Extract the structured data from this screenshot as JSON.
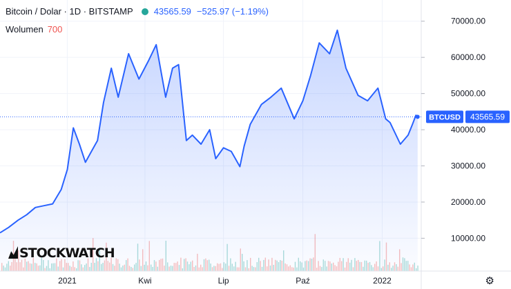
{
  "header": {
    "symbol": "Bitcoin / Dolar · 1D · BITSTAMP",
    "last": "43565.59",
    "change": "−525.97 (−1.19%)",
    "status_color": "#26a69a"
  },
  "volume": {
    "label": "Wolumen",
    "value": "700"
  },
  "logo": {
    "text": "STOCKWATCH"
  },
  "price_tag": {
    "symbol": "BTCUSD",
    "value": "43565.59"
  },
  "settings_icon": "gear-icon",
  "colors": {
    "line": "#2962ff",
    "fill": "#2962ff",
    "vol_up": "#26a69a",
    "vol_down": "#ef5350"
  },
  "chart_data": {
    "type": "area",
    "title": "Bitcoin / Dolar · 1D · BITSTAMP",
    "xlabel": "",
    "ylabel": "",
    "ylim": [
      5500,
      75000
    ],
    "y_ticks": [
      "70000.00",
      "60000.00",
      "50000.00",
      "40000.00",
      "30000.00",
      "20000.00",
      "10000.00"
    ],
    "y_tick_values": [
      70000,
      60000,
      50000,
      40000,
      30000,
      20000,
      10000
    ],
    "x_ticks": [
      "2021",
      "Kwi",
      "Lip",
      "Paź",
      "2022"
    ],
    "x_tick_dates": [
      "2021-01-01",
      "2021-04-01",
      "2021-07-01",
      "2021-10-01",
      "2022-01-01"
    ],
    "grid": true,
    "series": [
      {
        "name": "BTCUSD",
        "x": [
          "2020-10-15",
          "2020-10-25",
          "2020-11-05",
          "2020-11-15",
          "2020-11-25",
          "2020-12-05",
          "2020-12-15",
          "2020-12-25",
          "2021-01-01",
          "2021-01-08",
          "2021-01-15",
          "2021-01-22",
          "2021-01-29",
          "2021-02-05",
          "2021-02-12",
          "2021-02-21",
          "2021-03-01",
          "2021-03-13",
          "2021-03-25",
          "2021-04-05",
          "2021-04-14",
          "2021-04-25",
          "2021-05-03",
          "2021-05-10",
          "2021-05-19",
          "2021-05-26",
          "2021-06-05",
          "2021-06-15",
          "2021-06-22",
          "2021-07-01",
          "2021-07-10",
          "2021-07-20",
          "2021-07-25",
          "2021-08-01",
          "2021-08-14",
          "2021-08-25",
          "2021-09-06",
          "2021-09-21",
          "2021-10-01",
          "2021-10-10",
          "2021-10-20",
          "2021-11-01",
          "2021-11-10",
          "2021-11-20",
          "2021-12-04",
          "2021-12-15",
          "2021-12-27",
          "2022-01-05",
          "2022-01-10",
          "2022-01-22",
          "2022-01-31",
          "2022-02-05",
          "2022-02-09",
          "2022-02-11"
        ],
        "values": [
          11500,
          13000,
          15000,
          16500,
          18500,
          19000,
          19500,
          23500,
          29000,
          40500,
          36000,
          31000,
          34000,
          37000,
          47500,
          57000,
          49000,
          61000,
          54000,
          59000,
          63500,
          49000,
          57000,
          58000,
          37000,
          38500,
          36000,
          40000,
          32000,
          35000,
          34000,
          29800,
          35500,
          41500,
          47000,
          49000,
          51500,
          43000,
          48000,
          55000,
          64000,
          61000,
          67500,
          57000,
          49500,
          48000,
          51500,
          43000,
          42000,
          36000,
          38500,
          41500,
          44000,
          43565
        ]
      }
    ]
  }
}
